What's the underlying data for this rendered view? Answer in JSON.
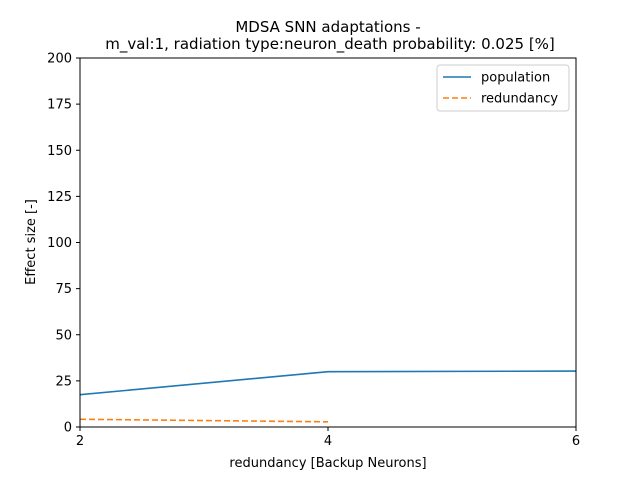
{
  "chart_data": {
    "type": "line",
    "title": [
      "MDSA SNN adaptations -",
      "m_val:1, radiation type:neuron_death probability: 0.025 [%]"
    ],
    "xlabel": "redundancy [Backup Neurons]",
    "ylabel": "Effect size [-]",
    "xlim": [
      2,
      6
    ],
    "ylim": [
      0,
      200
    ],
    "xticks": [
      2,
      4,
      6
    ],
    "yticks": [
      0,
      25,
      50,
      75,
      100,
      125,
      150,
      175,
      200
    ],
    "grid": false,
    "legend_position": "top-right",
    "series": [
      {
        "name": "population",
        "color": "#1f77b4",
        "dash": "solid",
        "x": [
          2,
          4,
          6
        ],
        "y": [
          17.5,
          30.0,
          30.3
        ]
      },
      {
        "name": "redundancy",
        "color": "#ff7f0e",
        "dash": "dashed",
        "x": [
          2,
          4
        ],
        "y": [
          4.2,
          2.8
        ]
      }
    ]
  }
}
